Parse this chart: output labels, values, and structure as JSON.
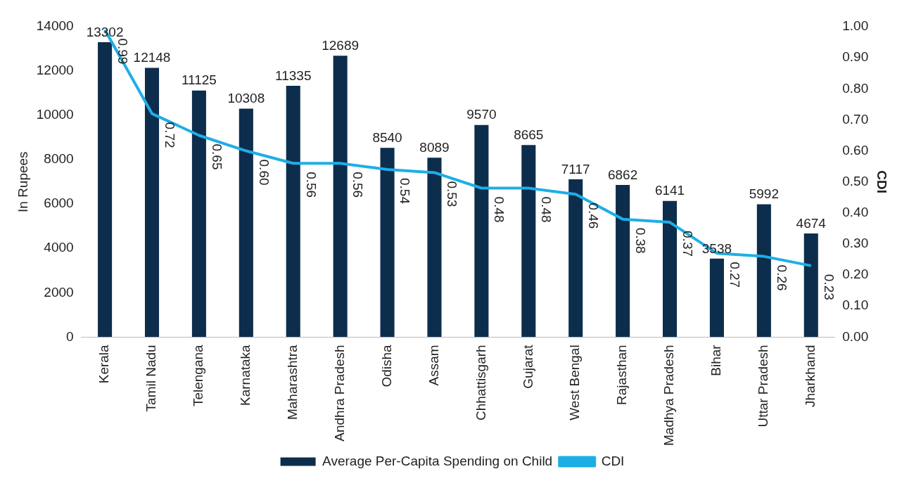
{
  "chart_data": {
    "type": "bar",
    "ylabel": "In Rupees",
    "y2label": "CDI",
    "categories": [
      "Kerala",
      "Tamil Nadu",
      "Telengana",
      "Karnataka",
      "Maharashtra",
      "Andhra Pradesh",
      "Odisha",
      "Assam",
      "Chhattisgarh",
      "Gujarat",
      "West Bengal",
      "Rajasthan",
      "Madhya Pradesh",
      "Bihar",
      "Uttar Pradesh",
      "Jharkhand"
    ],
    "series": [
      {
        "name": "Average Per-Capita Spending on Child",
        "color": "#0d2d4c",
        "values": [
          13302,
          12148,
          11125,
          10308,
          11335,
          12689,
          8540,
          8089,
          9570,
          8665,
          7117,
          6862,
          6141,
          3538,
          5992,
          4674
        ],
        "value_labels": [
          "13302",
          "12148",
          "11125",
          "10308",
          "11335",
          "12689",
          "8540",
          "8089",
          "9570",
          "8665",
          "7117",
          "6862",
          "6141",
          "3538",
          "5992",
          "4674"
        ]
      },
      {
        "name": "CDI",
        "type": "line",
        "axis": "y2",
        "color": "#1eaee6",
        "values": [
          0.99,
          0.72,
          0.65,
          0.6,
          0.56,
          0.56,
          0.54,
          0.53,
          0.48,
          0.48,
          0.46,
          0.38,
          0.37,
          0.27,
          0.26,
          0.23
        ],
        "value_labels": [
          "0.99",
          "0.72",
          "0.65",
          "0.60",
          "0.56",
          "0.56",
          "0.54",
          "0.53",
          "0.48",
          "0.48",
          "0.46",
          "0.38",
          "0.37",
          "0.27",
          "0.26",
          "0.23"
        ]
      }
    ],
    "ylim": [
      0,
      14000
    ],
    "yticks": [
      0,
      2000,
      4000,
      6000,
      8000,
      10000,
      12000,
      14000
    ],
    "y2lim": [
      0,
      1
    ],
    "y2ticks": [
      {
        "value": 0,
        "label": "0.00"
      },
      {
        "value": 0.1,
        "label": "0.10"
      },
      {
        "value": 0.2,
        "label": "0.20"
      },
      {
        "value": 0.3,
        "label": "0.30"
      },
      {
        "value": 0.4,
        "label": "0.40"
      },
      {
        "value": 0.5,
        "label": "0.50"
      },
      {
        "value": 0.6,
        "label": "0.60"
      },
      {
        "value": 0.7,
        "label": "0.70"
      },
      {
        "value": 0.8,
        "label": "0.80"
      },
      {
        "value": 0.9,
        "label": "0.90"
      },
      {
        "value": 1,
        "label": "1.00"
      }
    ],
    "grid": false,
    "legend": "bottom",
    "marker": "none"
  }
}
